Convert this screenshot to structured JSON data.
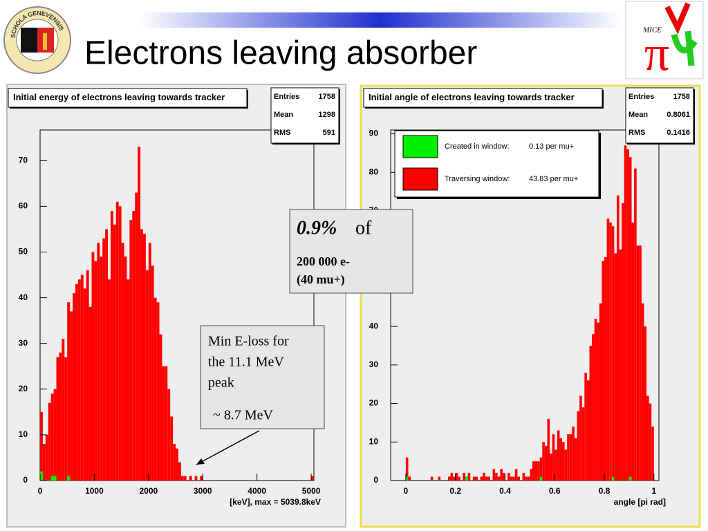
{
  "slide": {
    "title": "Electrons leaving absorber",
    "seal_text": "SCHOLA GENEVENSIS",
    "logo_text": "MICE"
  },
  "callouts": {
    "fraction": {
      "value": "0.9%",
      "of": "of",
      "line1": "200 000 e-",
      "line2": "(40 mu+)"
    },
    "eloss": {
      "lines": [
        "Min E-loss for",
        "the 11.1 MeV",
        "peak"
      ],
      "value": "~ 8.7 MeV"
    }
  },
  "chart_data": [
    {
      "type": "histogram",
      "title": "Initial energy of electrons leaving towards tracker",
      "xlabel": "[keV], max =    5039.8keV",
      "bins": [
        0,
        50,
        100,
        150,
        200,
        250,
        300,
        350,
        400,
        450,
        500,
        550,
        600,
        650,
        700,
        750,
        800,
        850,
        900,
        950,
        1000,
        1050,
        1100,
        1150,
        1200,
        1250,
        1300,
        1350,
        1400,
        1450,
        1500,
        1550,
        1600,
        1650,
        1700,
        1750,
        1800,
        1850,
        1900,
        1950,
        2000,
        2050,
        2100,
        2150,
        2200,
        2250,
        2300,
        2350,
        2400,
        2450,
        2500,
        2550,
        2600,
        2650,
        2700,
        2750,
        2800,
        2850,
        2900,
        2950,
        3000,
        3050,
        3100,
        3150,
        3200,
        3250,
        3300,
        3350,
        3400,
        3450,
        3500,
        3550,
        3600,
        3650,
        3700,
        3750,
        3800,
        3850,
        3900,
        3950,
        4000,
        4050,
        4100,
        4150,
        4200,
        4250,
        4300,
        4350,
        4400,
        4450,
        4500,
        4550,
        4600,
        4650,
        4700,
        4750,
        4800,
        4850,
        4900,
        4950,
        5000,
        5050
      ],
      "series": [
        {
          "color": "#00ee00",
          "values": [
            2,
            0,
            0,
            0,
            1,
            1,
            0,
            0,
            0,
            0,
            1,
            0,
            0,
            0,
            0,
            0,
            0,
            0,
            0,
            0,
            0,
            0,
            0,
            0,
            0,
            0,
            0,
            0,
            0,
            0,
            0,
            0,
            0,
            0,
            0,
            0,
            0,
            0,
            0,
            0,
            0,
            0,
            0,
            0,
            0,
            0,
            0,
            0,
            0,
            0,
            0,
            0,
            0,
            0,
            0,
            0,
            0,
            0,
            0,
            0,
            0,
            0,
            0,
            0,
            0,
            0,
            0,
            0,
            0,
            0,
            0,
            0,
            0,
            0,
            0,
            0,
            0,
            0,
            0,
            0,
            0,
            0,
            0,
            0,
            0,
            0,
            0,
            0,
            0,
            0,
            0,
            0,
            0,
            0,
            0,
            0,
            0,
            0,
            0,
            0,
            0
          ]
        },
        {
          "color": "#ff0000",
          "values": [
            15,
            8,
            10,
            17,
            19,
            20,
            27,
            28,
            31,
            27,
            39,
            37,
            41,
            43,
            44,
            45,
            42,
            46,
            38,
            50,
            48,
            52,
            49,
            53,
            55,
            44,
            59,
            56,
            61,
            60,
            52,
            49,
            44,
            57,
            59,
            63,
            73,
            55,
            54,
            46,
            52,
            47,
            40,
            39,
            32,
            25,
            25,
            20,
            14,
            8,
            7,
            4,
            1,
            1,
            0,
            1,
            0,
            1,
            0,
            1,
            0,
            0,
            0,
            0,
            0,
            0,
            0,
            0,
            0,
            0,
            0,
            0,
            0,
            0,
            0,
            0,
            0,
            0,
            0,
            0,
            0,
            0,
            0,
            0,
            0,
            0,
            0,
            0,
            0,
            0,
            0,
            0,
            0,
            0,
            0,
            0,
            0,
            0,
            0,
            0,
            1
          ]
        }
      ],
      "xlim": [
        0,
        5050
      ],
      "ylim": [
        0,
        76.7
      ],
      "xticks": [
        0,
        1000,
        2000,
        3000,
        4000,
        5000
      ],
      "yticks": [
        0,
        10,
        20,
        30,
        40,
        50,
        60,
        70
      ],
      "stats": [
        {
          "label": "Entries",
          "value": 1758
        },
        {
          "label": "Mean",
          "value": 1298
        },
        {
          "label": "RMS",
          "value": 591
        }
      ]
    },
    {
      "type": "histogram",
      "title": "Initial angle of electrons leaving towards tracker",
      "xlabel": "angle [pi rad]",
      "bins": [
        0,
        0.01,
        0.02,
        0.03,
        0.04,
        0.05,
        0.06,
        0.07,
        0.08,
        0.09,
        0.1,
        0.11,
        0.12,
        0.13,
        0.14,
        0.15,
        0.16,
        0.17,
        0.18,
        0.19,
        0.2,
        0.21,
        0.22,
        0.23,
        0.24,
        0.25,
        0.26,
        0.27,
        0.28,
        0.29,
        0.3,
        0.31,
        0.32,
        0.33,
        0.34,
        0.35,
        0.36,
        0.37,
        0.38,
        0.39,
        0.4,
        0.41,
        0.42,
        0.43,
        0.44,
        0.45,
        0.46,
        0.47,
        0.48,
        0.49,
        0.5,
        0.51,
        0.52,
        0.53,
        0.54,
        0.55,
        0.56,
        0.57,
        0.58,
        0.59,
        0.6,
        0.61,
        0.62,
        0.63,
        0.64,
        0.65,
        0.66,
        0.67,
        0.68,
        0.69,
        0.7,
        0.71,
        0.72,
        0.73,
        0.74,
        0.75,
        0.76,
        0.77,
        0.78,
        0.79,
        0.8,
        0.81,
        0.82,
        0.83,
        0.84,
        0.85,
        0.86,
        0.87,
        0.88,
        0.89,
        0.9,
        0.91,
        0.92,
        0.93,
        0.94,
        0.95,
        0.96,
        0.97,
        0.98,
        0.99,
        1
      ],
      "series": [
        {
          "name": "Created in window:",
          "rate": "0.13 per mu+",
          "color": "#00ee00",
          "values": [
            1,
            0,
            0,
            0,
            0,
            0,
            0,
            0,
            0,
            0,
            0,
            0,
            0,
            0,
            0,
            0,
            0,
            0,
            0,
            0,
            0,
            0,
            0,
            0,
            1,
            0,
            0,
            0,
            0,
            0,
            0,
            0,
            0,
            0,
            0,
            0,
            0,
            0,
            0,
            0,
            0,
            0,
            0,
            0,
            0,
            0,
            0,
            0,
            0,
            0,
            0,
            0,
            0,
            0,
            1,
            0,
            0,
            0,
            0,
            0,
            0,
            0,
            0,
            0,
            0,
            0,
            0,
            0,
            0,
            0,
            0,
            0,
            0,
            0,
            0,
            0,
            0,
            0,
            0,
            0,
            0,
            0,
            0,
            1,
            0,
            0,
            0,
            0,
            0,
            0,
            1,
            0,
            0,
            0,
            0,
            0,
            0,
            0,
            0,
            0
          ]
        },
        {
          "name": "Traversing window:",
          "rate": "43.83 per mu+",
          "color": "#ff0000",
          "values": [
            6,
            1,
            0,
            0,
            0,
            0,
            0,
            0,
            0,
            0,
            1,
            0,
            0,
            1,
            0,
            0,
            0,
            1,
            2,
            1,
            2,
            1,
            0,
            2,
            1,
            2,
            0,
            1,
            1,
            0,
            1,
            2,
            1,
            1,
            0,
            3,
            2,
            1,
            3,
            2,
            0,
            2,
            1,
            1,
            3,
            1,
            0,
            2,
            1,
            1,
            3,
            5,
            5,
            5,
            6,
            10,
            9,
            16,
            7,
            12,
            8,
            13,
            11,
            10,
            8,
            12,
            12,
            14,
            11,
            18,
            22,
            19,
            28,
            26,
            35,
            38,
            42,
            41,
            46,
            57,
            58,
            68,
            67,
            66,
            59,
            74,
            60,
            72,
            87,
            86,
            84,
            67,
            81,
            61,
            61,
            46,
            40,
            22,
            20,
            14
          ]
        }
      ],
      "xlim": [
        -0.061,
        1.02
      ],
      "ylim": [
        0,
        91
      ],
      "xticks": [
        0,
        0.2,
        0.4,
        0.6,
        0.8,
        1
      ],
      "yticks": [
        0,
        10,
        20,
        30,
        40,
        50,
        60,
        70,
        80,
        90
      ],
      "stats": [
        {
          "label": "Entries",
          "value": 1758
        },
        {
          "label": "Mean",
          "value": 0.8061
        },
        {
          "label": "RMS",
          "value": 0.1416
        }
      ]
    }
  ]
}
